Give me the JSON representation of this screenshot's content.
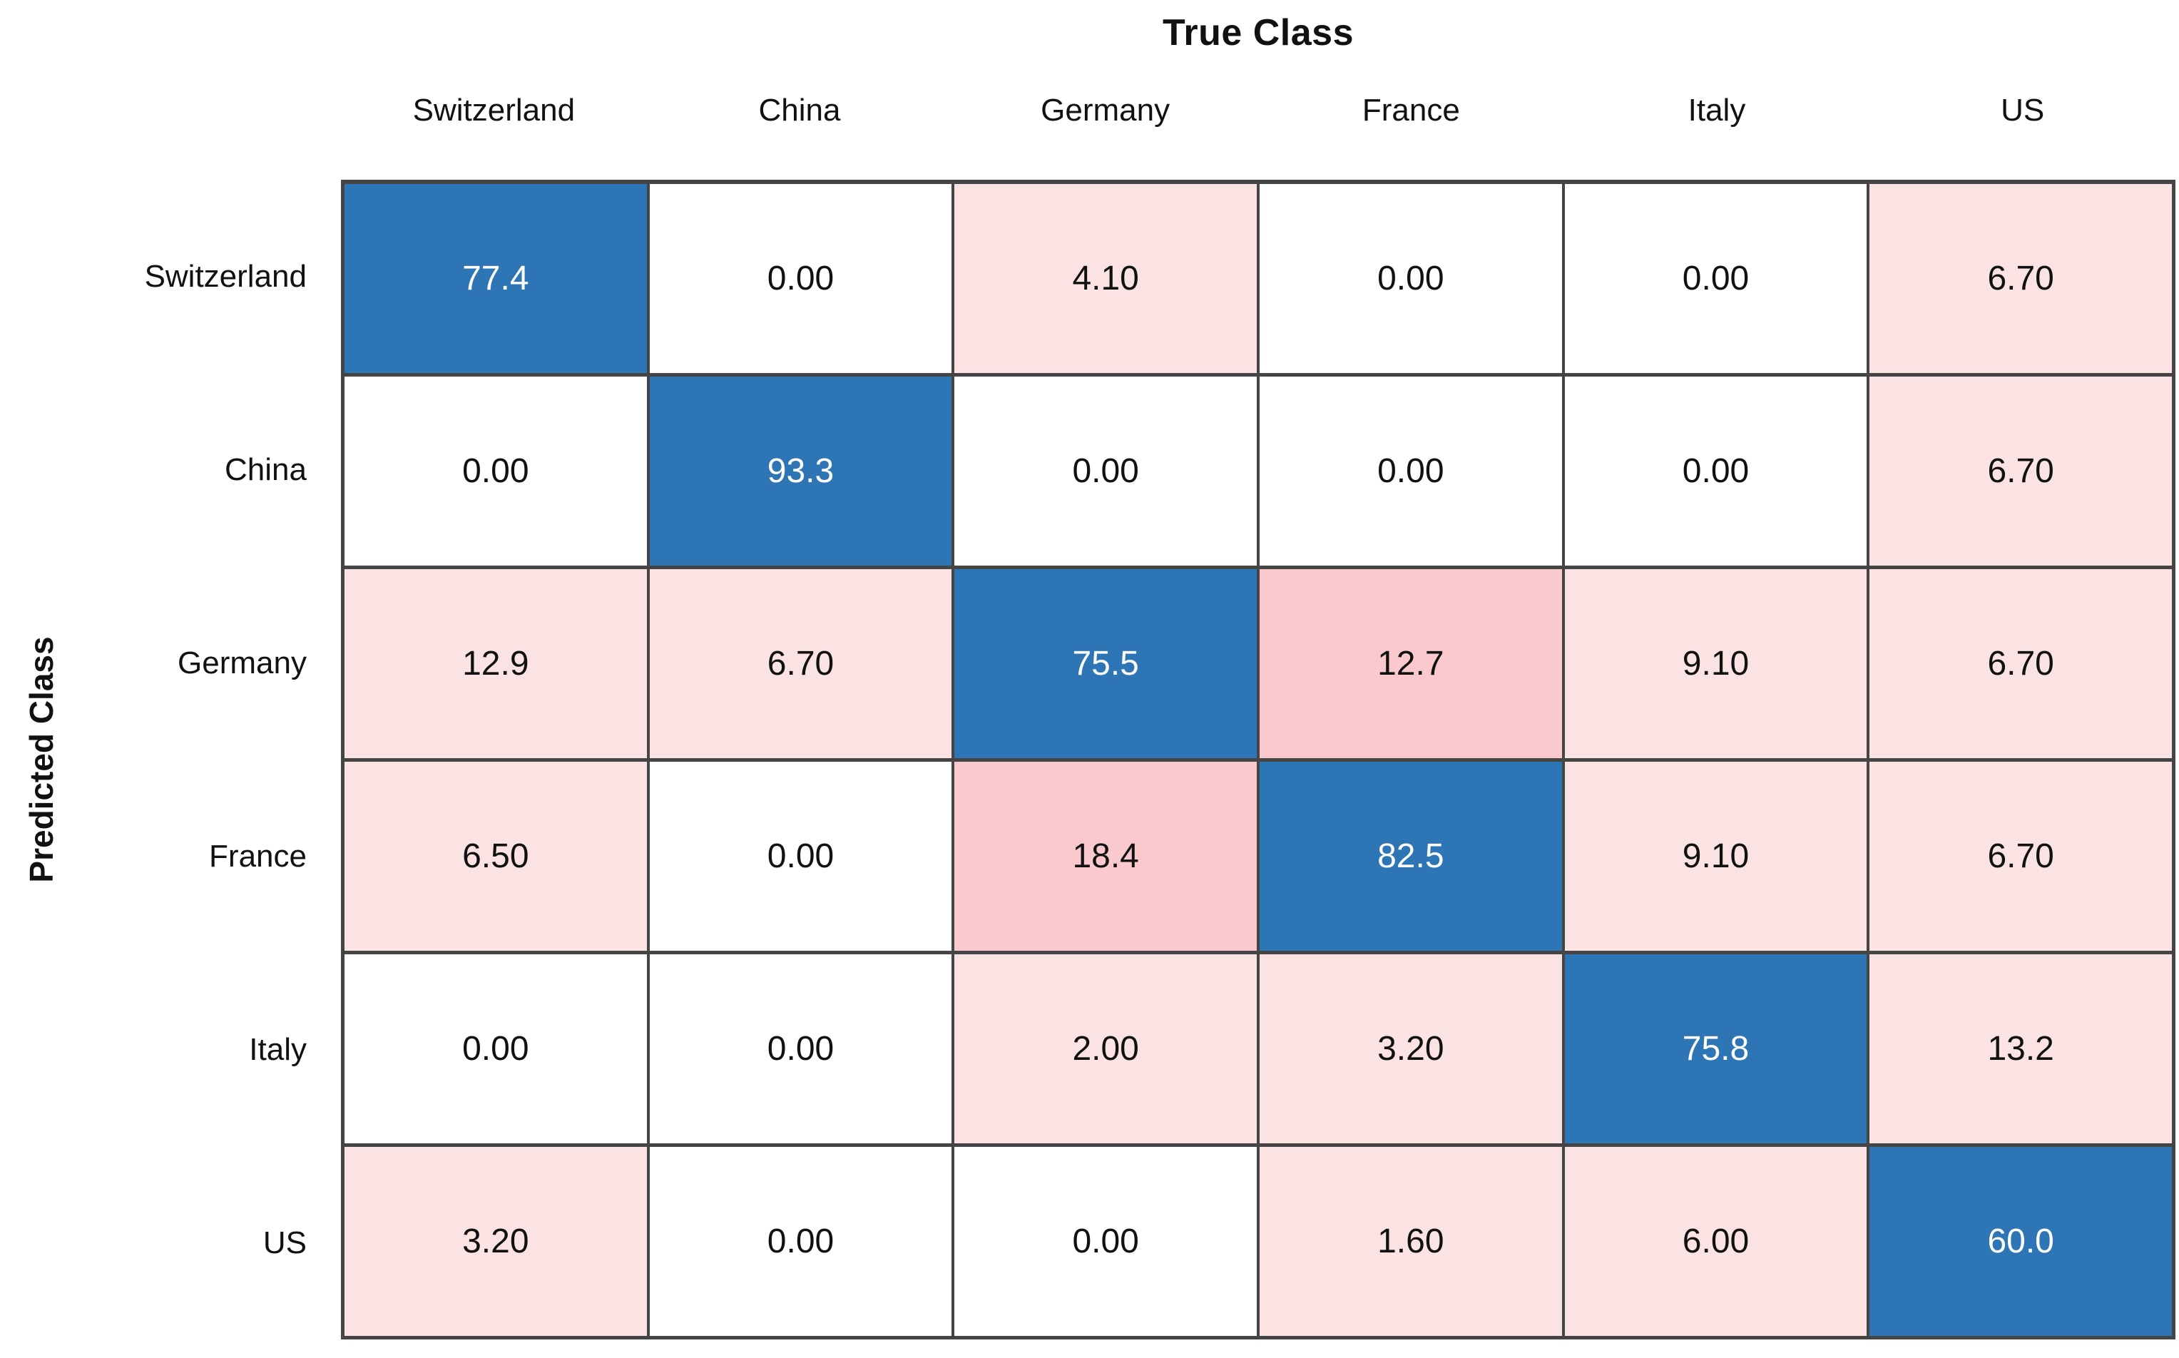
{
  "title": "True Class",
  "y_axis_label": "Predicted Class",
  "colors": {
    "diagonal-blue": "#2e75b5",
    "light-pink": "#fbe3e4",
    "medium-pink": "#f9c9cd",
    "grid-line": "#454545",
    "cell-text": "#111111",
    "diag-text": "#ffffff"
  },
  "chart_data": {
    "type": "heatmap",
    "title": "True Class",
    "xlabel": "True Class",
    "ylabel": "Predicted Class",
    "x_categories": [
      "Switzerland",
      "China",
      "Germany",
      "France",
      "Italy",
      "US"
    ],
    "y_categories": [
      "Switzerland",
      "China",
      "Germany",
      "France",
      "Italy",
      "US"
    ],
    "legend": "none",
    "grid": true,
    "value_range": [
      0,
      100
    ],
    "matrix": [
      [
        77.4,
        0.0,
        4.1,
        0.0,
        0.0,
        6.7
      ],
      [
        0.0,
        93.3,
        0.0,
        0.0,
        0.0,
        6.7
      ],
      [
        12.9,
        6.7,
        75.5,
        12.7,
        9.1,
        6.7
      ],
      [
        6.5,
        0.0,
        18.4,
        82.5,
        9.1,
        6.7
      ],
      [
        0.0,
        0.0,
        2.0,
        3.2,
        75.8,
        13.2
      ],
      [
        3.2,
        0.0,
        0.0,
        1.6,
        6.0,
        60.0
      ]
    ],
    "cell_labels": [
      [
        "77.4",
        "0.00",
        "4.10",
        "0.00",
        "0.00",
        "6.70"
      ],
      [
        "0.00",
        "93.3",
        "0.00",
        "0.00",
        "0.00",
        "6.70"
      ],
      [
        "12.9",
        "6.70",
        "75.5",
        "12.7",
        "9.10",
        "6.70"
      ],
      [
        "6.50",
        "0.00",
        "18.4",
        "82.5",
        "9.10",
        "6.70"
      ],
      [
        "0.00",
        "0.00",
        "2.00",
        "3.20",
        "75.8",
        "13.2"
      ],
      [
        "3.20",
        "0.00",
        "0.00",
        "1.60",
        "6.00",
        "60.0"
      ]
    ],
    "cell_styles": [
      [
        "blue",
        "white",
        "pink",
        "white",
        "white",
        "pink"
      ],
      [
        "white",
        "blue",
        "white",
        "white",
        "white",
        "pink"
      ],
      [
        "pink",
        "pink",
        "blue",
        "pink2",
        "pink",
        "pink"
      ],
      [
        "pink",
        "white",
        "pink2",
        "blue",
        "pink",
        "pink"
      ],
      [
        "white",
        "white",
        "pink",
        "pink",
        "blue",
        "pink"
      ],
      [
        "pink",
        "white",
        "white",
        "pink",
        "pink",
        "blue"
      ]
    ]
  }
}
